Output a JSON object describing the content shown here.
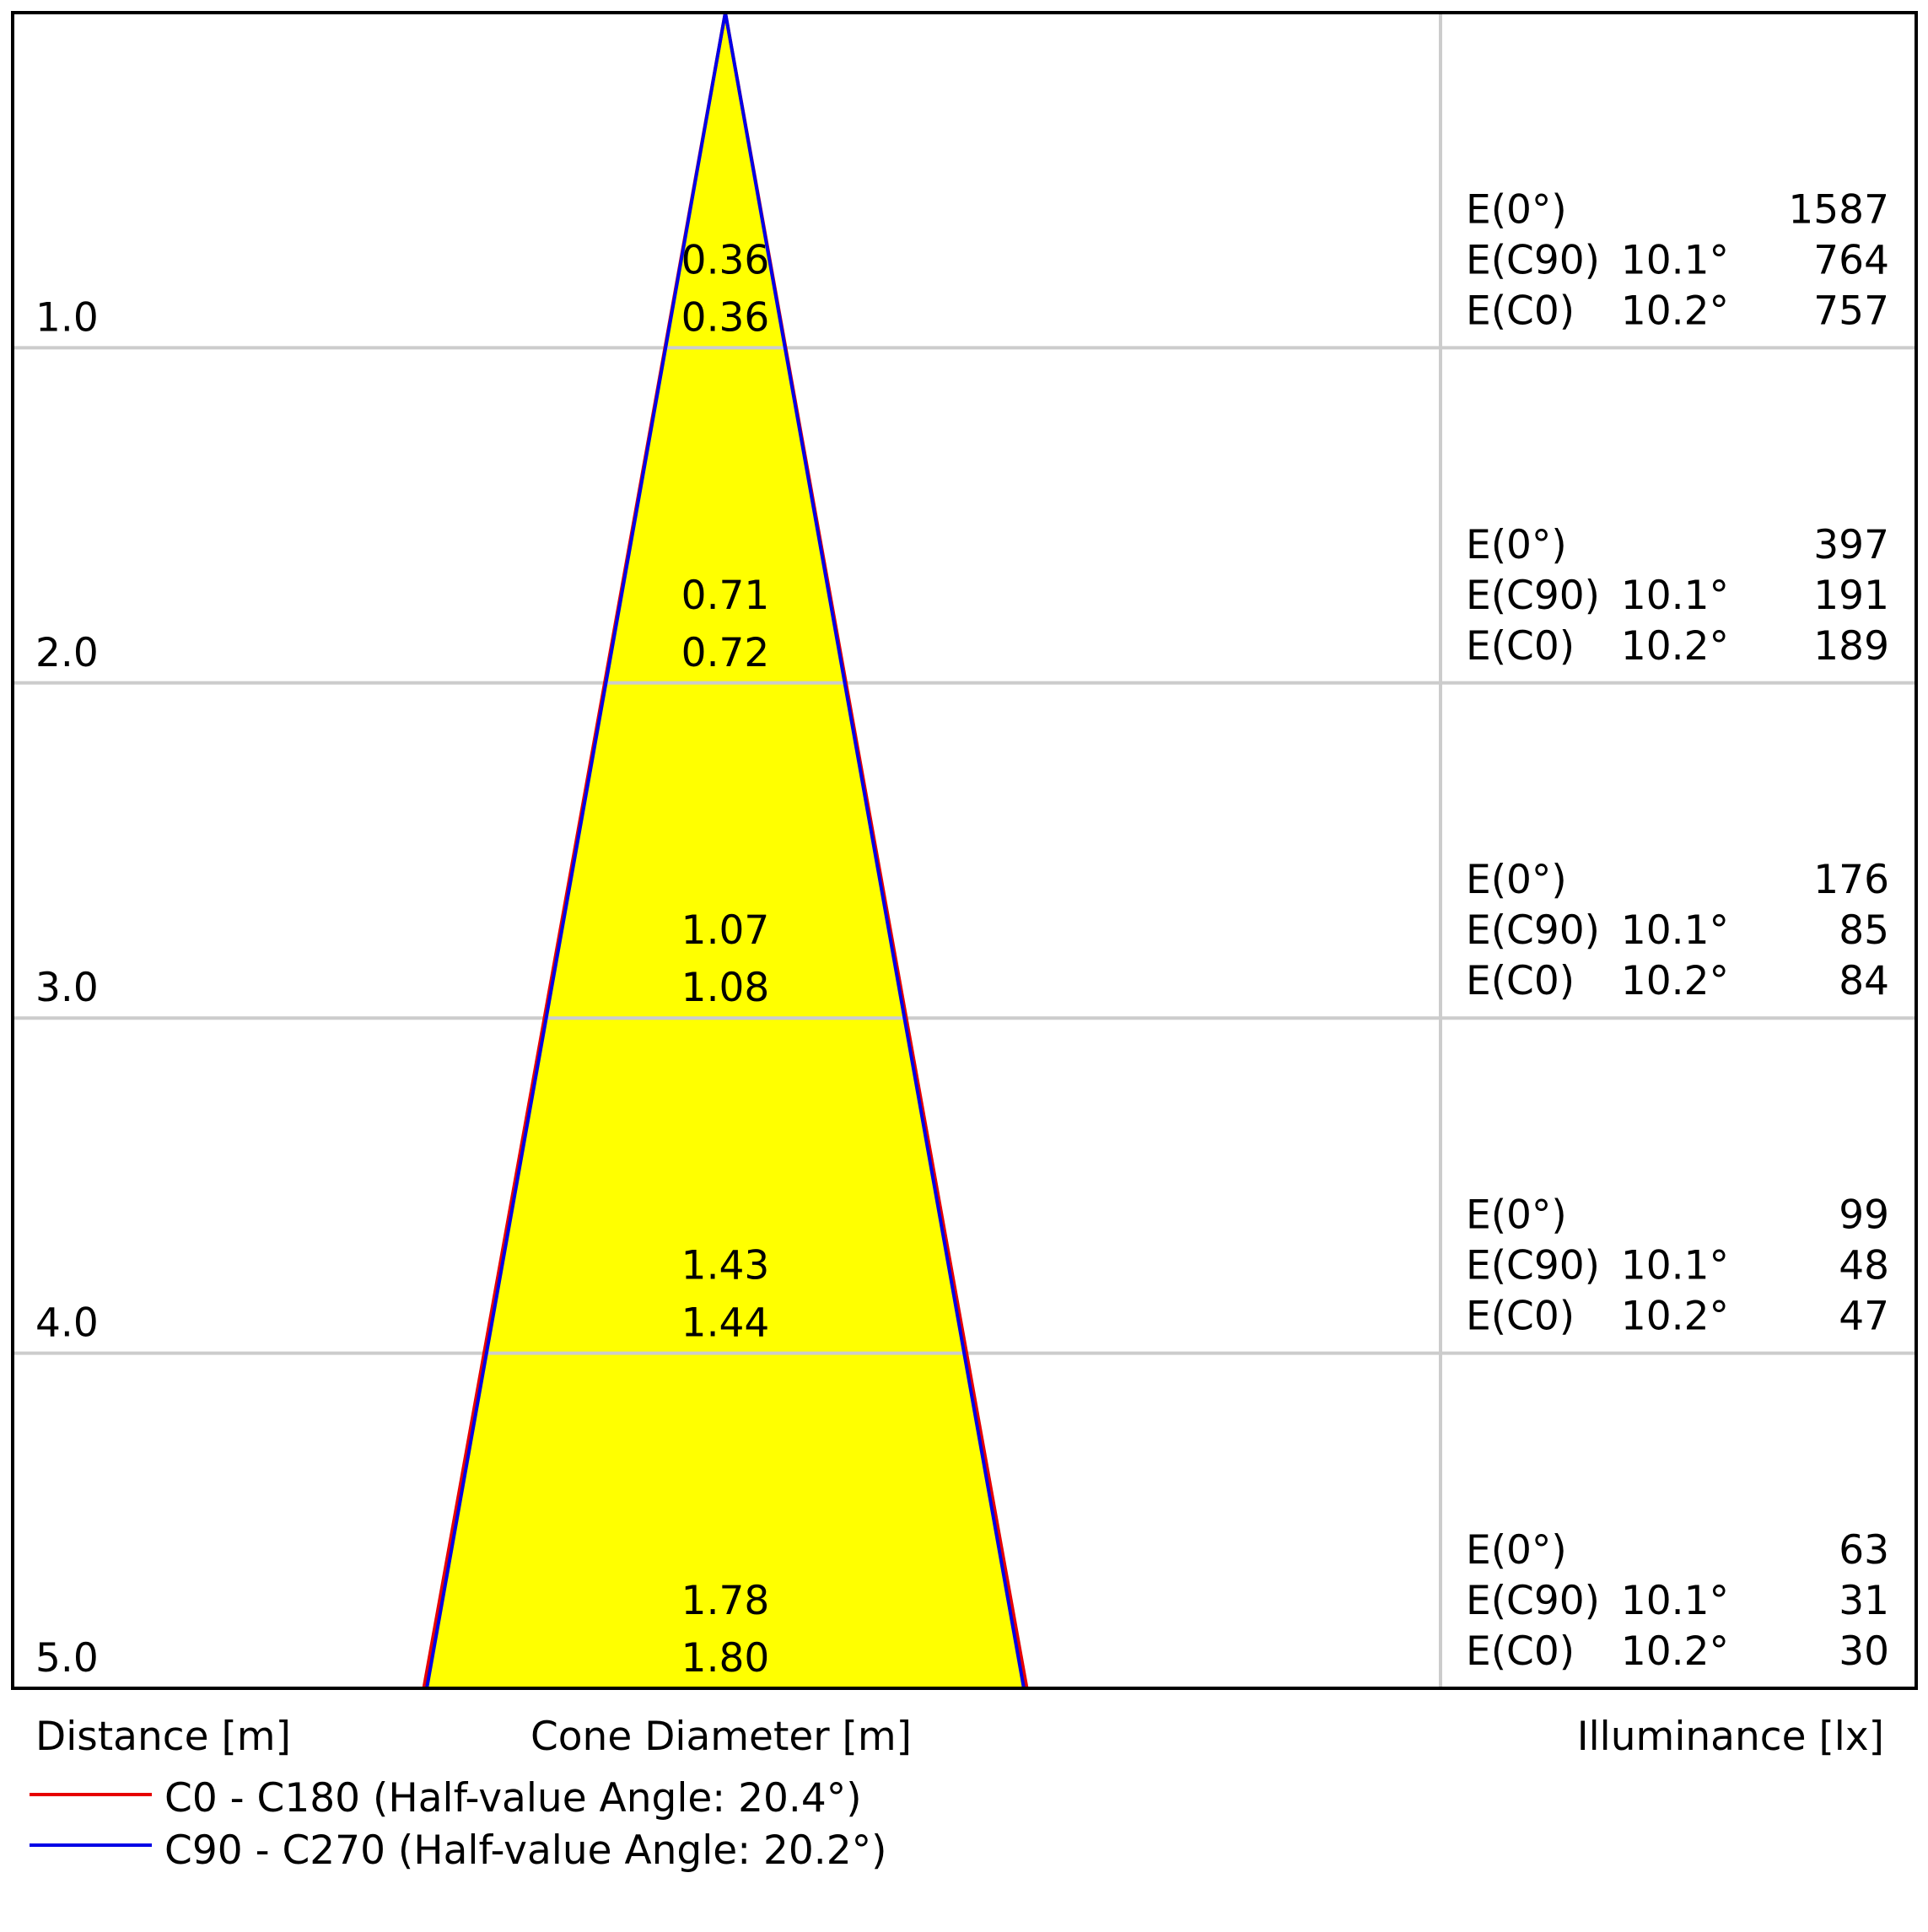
{
  "chart_data": {
    "type": "area",
    "xlabel": "Distance [m]",
    "center_label": "Cone Diameter [m]",
    "ylabel": "Illuminance [lx]",
    "distances": [
      "1.0",
      "2.0",
      "3.0",
      "4.0",
      "5.0"
    ],
    "distance_values": [
      1,
      2,
      3,
      4,
      5
    ],
    "max_distance": 5,
    "series": [
      {
        "name": "C0 - C180 (Half-value Angle: 20.4°)",
        "color": "#e60000",
        "half_angle_deg": 20.4,
        "diameters": [
          "0.36",
          "0.72",
          "1.08",
          "1.44",
          "1.80"
        ],
        "diameter_values": [
          0.36,
          0.72,
          1.08,
          1.44,
          1.8
        ]
      },
      {
        "name": "C90 - C270 (Half-value Angle: 20.2°)",
        "color": "#0000e6",
        "half_angle_deg": 20.2,
        "diameters": [
          "0.36",
          "0.71",
          "1.07",
          "1.43",
          "1.78"
        ],
        "diameter_values": [
          0.36,
          0.71,
          1.07,
          1.43,
          1.78
        ]
      }
    ],
    "cone_fill": "#ffff00",
    "illuminance": [
      {
        "e0_label": "E(0°)",
        "e0": "1587",
        "c90_label": "E(C90)",
        "c90_angle": "10.1°",
        "c90": "764",
        "c0_label": "E(C0)",
        "c0_angle": "10.2°",
        "c0": "757"
      },
      {
        "e0_label": "E(0°)",
        "e0": "397",
        "c90_label": "E(C90)",
        "c90_angle": "10.1°",
        "c90": "191",
        "c0_label": "E(C0)",
        "c0_angle": "10.2°",
        "c0": "189"
      },
      {
        "e0_label": "E(0°)",
        "e0": "176",
        "c90_label": "E(C90)",
        "c90_angle": "10.1°",
        "c90": "85",
        "c0_label": "E(C0)",
        "c0_angle": "10.2°",
        "c0": "84"
      },
      {
        "e0_label": "E(0°)",
        "e0": "99",
        "c90_label": "E(C90)",
        "c90_angle": "10.1°",
        "c90": "48",
        "c0_label": "E(C0)",
        "c0_angle": "10.2°",
        "c0": "47"
      },
      {
        "e0_label": "E(0°)",
        "e0": "63",
        "c90_label": "E(C90)",
        "c90_angle": "10.1°",
        "c90": "31",
        "c0_label": "E(C0)",
        "c0_angle": "10.2°",
        "c0": "30"
      }
    ],
    "grid": true
  }
}
